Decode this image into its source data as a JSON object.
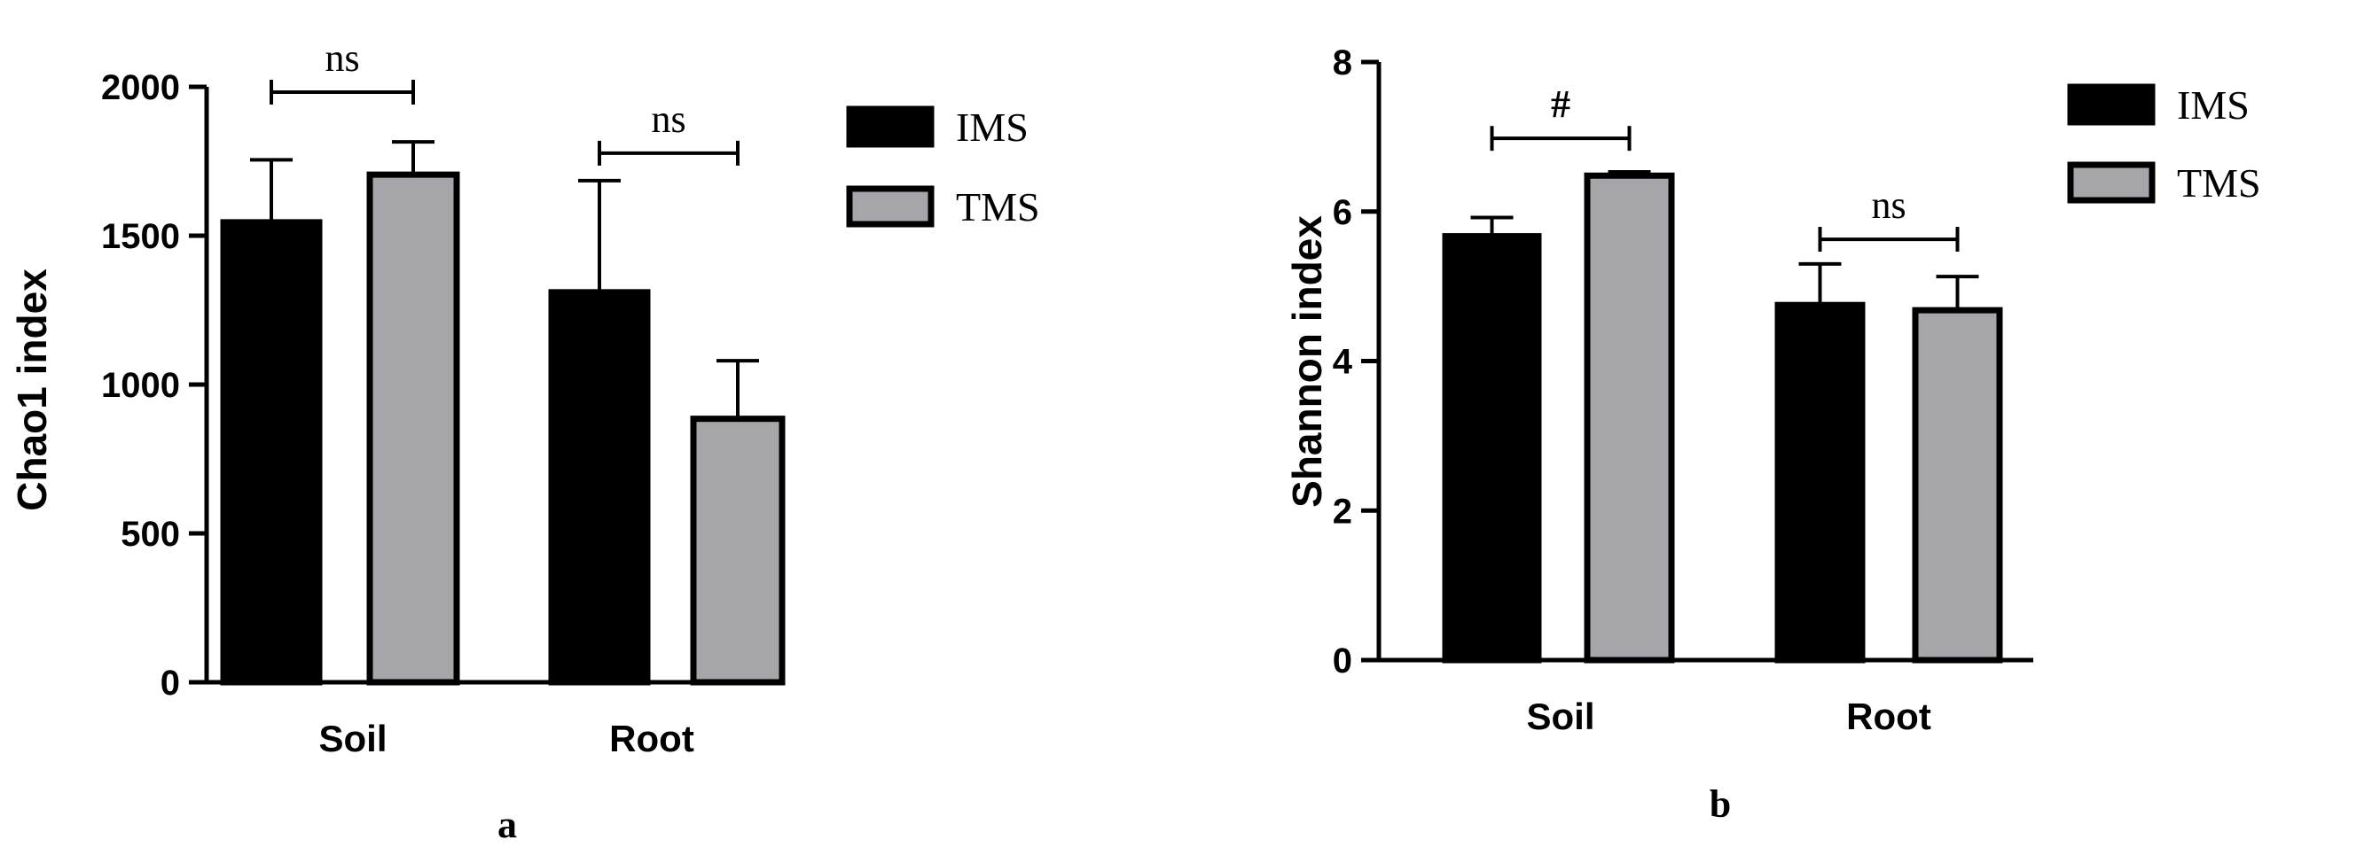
{
  "chart_data": [
    {
      "type": "bar",
      "panel_label": "a",
      "ylabel": "Chao1 index",
      "xlabel": "",
      "ylim": [
        0,
        2000
      ],
      "yticks": [
        0,
        500,
        1000,
        1500,
        2000
      ],
      "categories": [
        "Soil",
        "Root"
      ],
      "series": [
        {
          "name": "IMS",
          "color": "#000000",
          "values": [
            1545,
            1310
          ],
          "errors": [
            210,
            375
          ]
        },
        {
          "name": "TMS",
          "color": "#a6a6aa",
          "values": [
            1705,
            885
          ],
          "errors": [
            110,
            195
          ]
        }
      ],
      "significance": [
        {
          "category": "Soil",
          "label": "ns",
          "level": 2000
        },
        {
          "category": "Root",
          "label": "ns",
          "level": 1795
        }
      ],
      "legend": "right",
      "grid": false
    },
    {
      "type": "bar",
      "panel_label": "b",
      "ylabel": "Shannon index",
      "xlabel": "",
      "ylim": [
        0,
        8
      ],
      "yticks": [
        0,
        2,
        4,
        6,
        8
      ],
      "categories": [
        "Soil",
        "Root"
      ],
      "series": [
        {
          "name": "IMS",
          "color": "#000000",
          "values": [
            5.67,
            4.75
          ],
          "errors": [
            0.25,
            0.55
          ]
        },
        {
          "name": "TMS",
          "color": "#a6a6aa",
          "values": [
            6.48,
            4.68
          ],
          "errors": [
            0.05,
            0.45
          ]
        }
      ],
      "significance": [
        {
          "category": "Soil",
          "label": "#",
          "level": 7.05
        },
        {
          "category": "Root",
          "label": "ns",
          "level": 5.7
        }
      ],
      "legend": "right",
      "grid": false
    }
  ]
}
